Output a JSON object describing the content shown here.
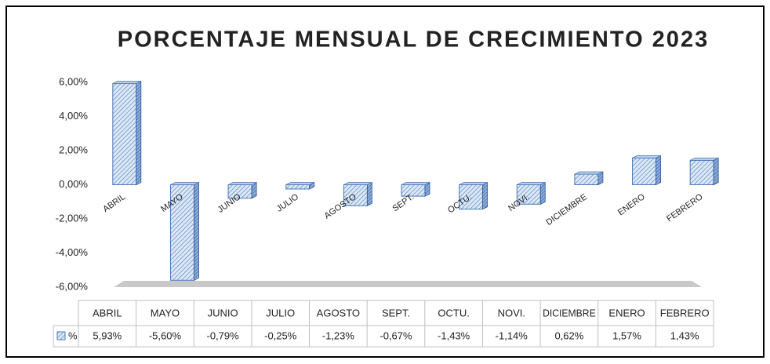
{
  "chart_data": {
    "type": "bar",
    "title": "PORCENTAJE MENSUAL DE CRECIMIENTO 2023",
    "categories": [
      "ABRIL",
      "MAYO",
      "JUNIO",
      "JULIO",
      "AGOSTO",
      "SEPT.",
      "OCTU.",
      "NOVI.",
      "DICIEMBRE",
      "ENERO",
      "FEBRERO"
    ],
    "series": [
      {
        "name": "%",
        "color": "#9dc3e6",
        "values": [
          5.93,
          -5.6,
          -0.79,
          -0.25,
          -1.23,
          -0.67,
          -1.43,
          -1.14,
          0.62,
          1.57,
          1.43
        ],
        "value_labels": [
          "5,93%",
          "-5,60%",
          "-0,79%",
          "-0,25%",
          "-1,23%",
          "-0,67%",
          "-1,43%",
          "-1,14%",
          "0,62%",
          "1,57%",
          "1,43%"
        ]
      }
    ],
    "ylim": [
      -6,
      6
    ],
    "yticks": [
      {
        "value": -6,
        "label": "-6,00%"
      },
      {
        "value": -4,
        "label": "-4,00%"
      },
      {
        "value": -2,
        "label": "-2,00%"
      },
      {
        "value": 0,
        "label": "0,00%"
      },
      {
        "value": 2,
        "label": "2,00%"
      },
      {
        "value": 4,
        "label": "4,00%"
      },
      {
        "value": 6,
        "label": "6,00%"
      }
    ]
  }
}
